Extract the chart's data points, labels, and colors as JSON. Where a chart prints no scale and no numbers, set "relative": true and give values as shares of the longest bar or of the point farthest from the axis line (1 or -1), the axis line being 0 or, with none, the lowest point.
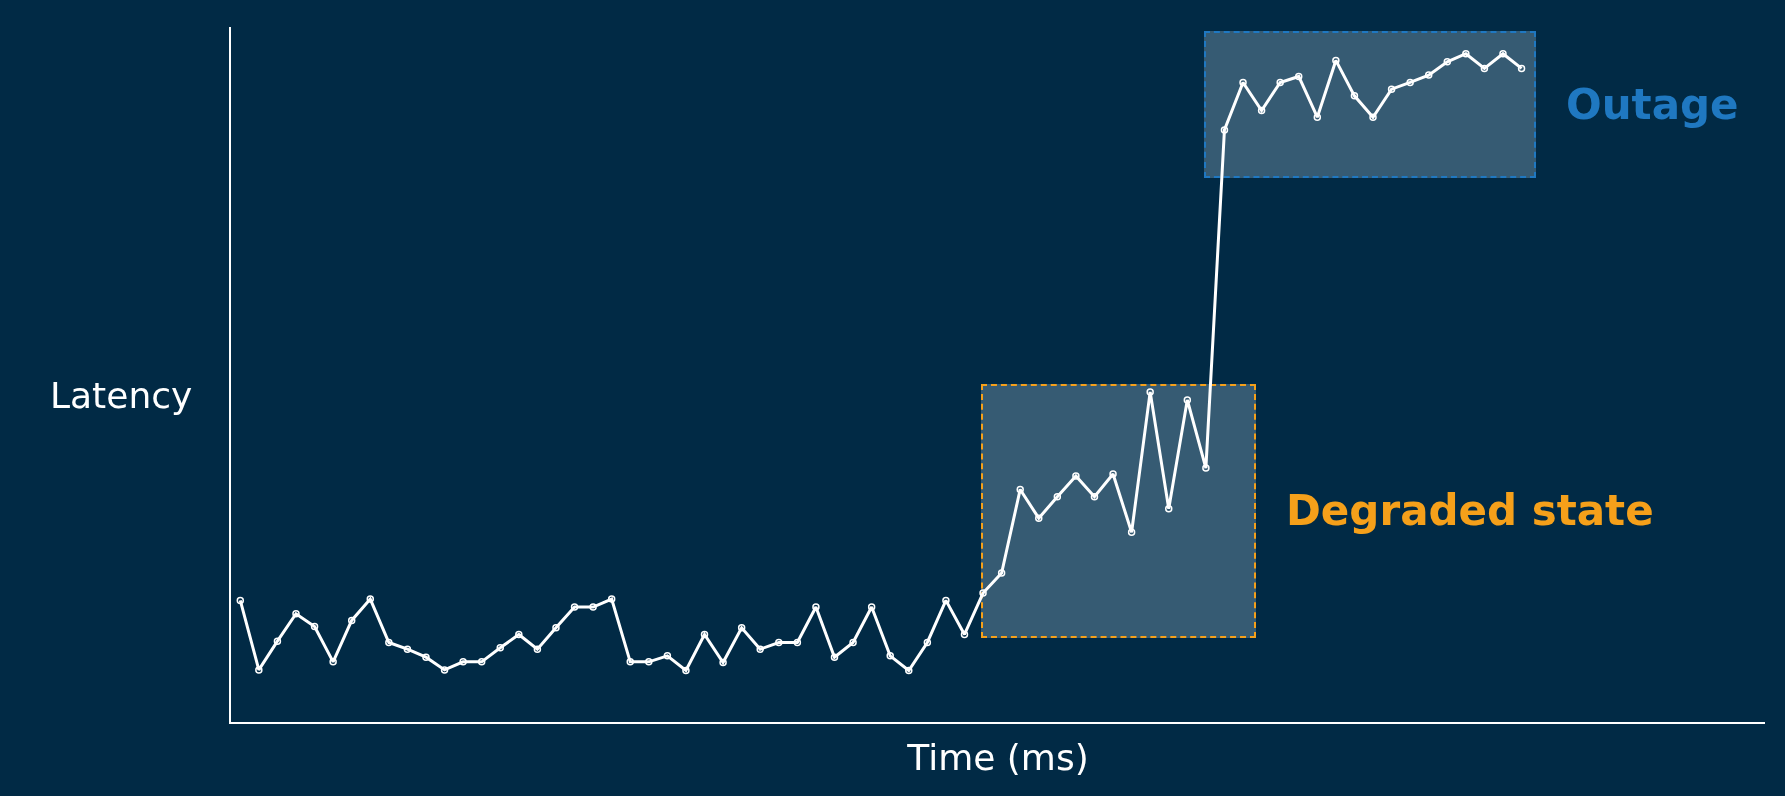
{
  "chart_data": {
    "type": "line",
    "relative": true,
    "xlabel": "Time (ms)",
    "ylabel": "Latency",
    "marker": "circle",
    "line_style": "solid",
    "grid": false,
    "tick_labels": false,
    "categories": [
      null,
      null,
      null,
      null,
      null,
      null,
      null,
      null,
      null,
      null,
      null,
      null,
      null,
      null,
      null,
      null,
      null,
      null,
      null,
      null,
      null,
      null,
      null,
      null,
      null,
      null,
      null,
      null,
      null,
      null,
      null,
      null,
      null,
      null,
      null,
      null,
      null,
      null,
      null,
      null,
      null,
      null,
      null,
      null,
      null,
      null,
      null,
      null,
      null,
      null,
      null,
      null,
      null,
      null,
      null,
      null,
      null,
      null,
      null,
      null,
      null,
      null,
      null,
      null,
      null,
      null,
      null,
      null,
      null,
      null
    ],
    "series": [
      {
        "color": "#ffffff",
        "values": [
          0.182,
          0.078,
          0.121,
          0.162,
          0.143,
          0.09,
          0.152,
          0.184,
          0.119,
          0.109,
          0.097,
          0.078,
          0.09,
          0.09,
          0.111,
          0.131,
          0.109,
          0.141,
          0.172,
          0.172,
          0.184,
          0.09,
          0.09,
          0.099,
          0.077,
          0.131,
          0.089,
          0.141,
          0.109,
          0.119,
          0.119,
          0.172,
          0.097,
          0.119,
          0.172,
          0.099,
          0.077,
          0.119,
          0.182,
          0.131,
          0.193,
          0.223,
          0.348,
          0.305,
          0.337,
          0.368,
          0.337,
          0.371,
          0.284,
          0.494,
          0.319,
          0.482,
          0.38,
          0.886,
          0.957,
          0.915,
          0.957,
          0.966,
          0.905,
          0.99,
          0.937,
          0.905,
          0.947,
          0.957,
          0.968,
          0.988,
          1,
          0.978,
          1,
          0.978
        ]
      }
    ],
    "annotations": [
      "Degraded state",
      "Outage"
    ]
  }
}
